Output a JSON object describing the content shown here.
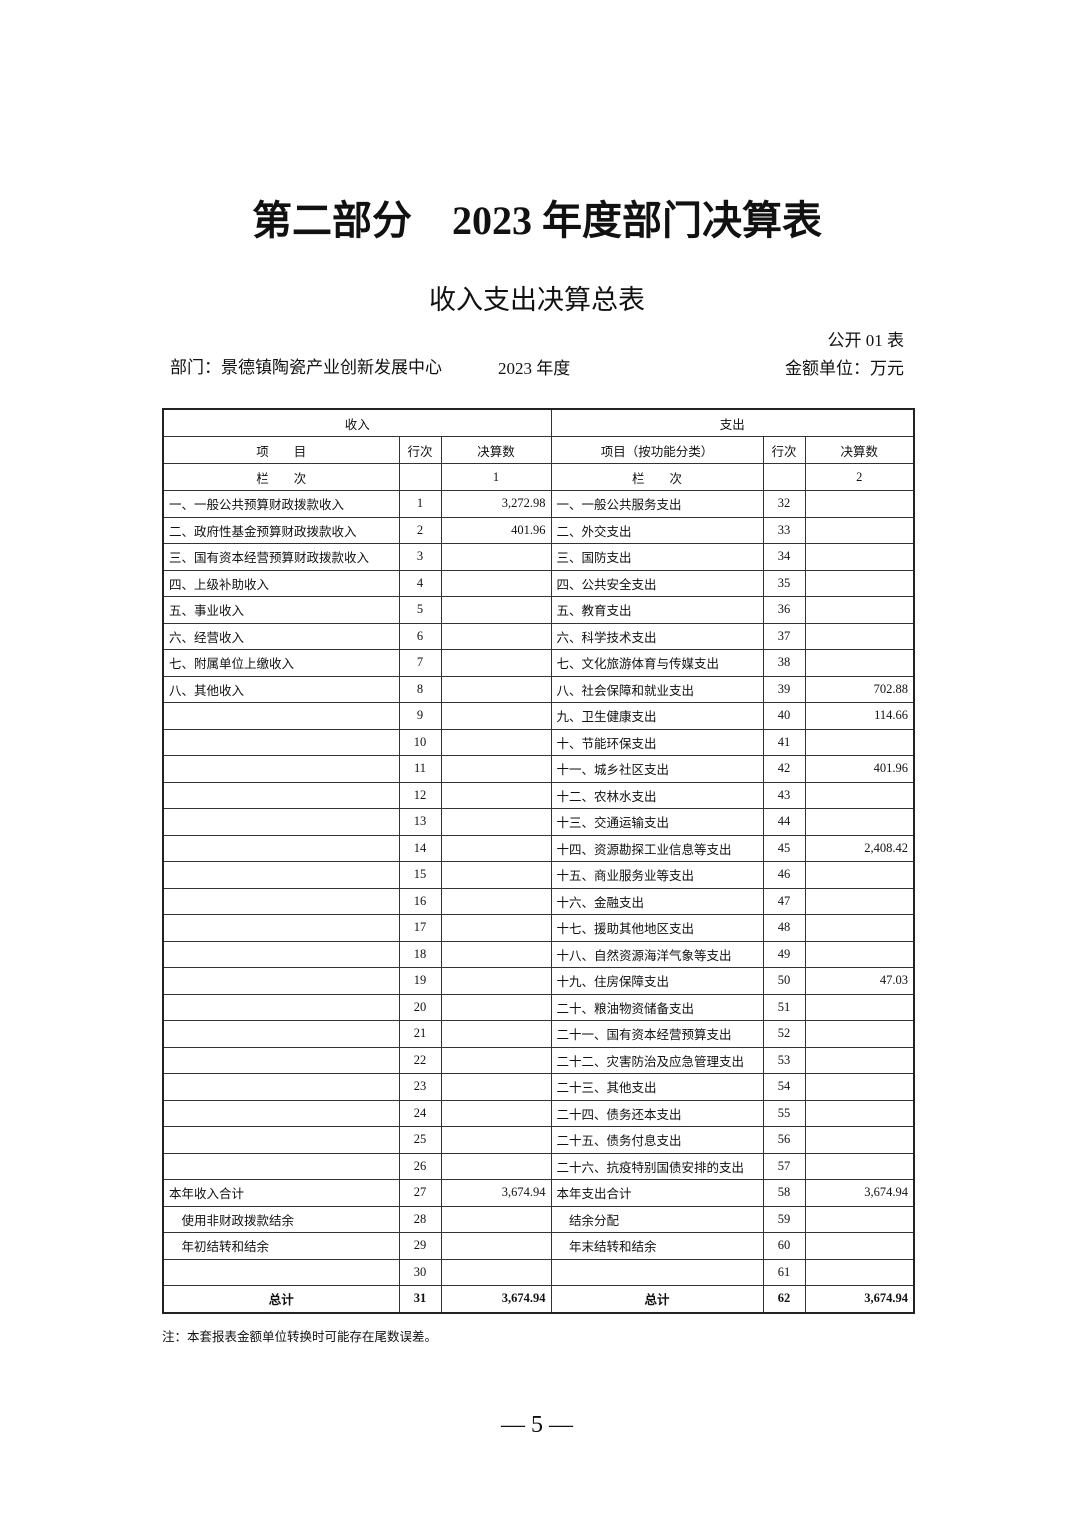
{
  "header": {
    "title": "第二部分　2023 年度部门决算表",
    "subtitle": "收入支出决算总表",
    "table_code": "公开 01 表",
    "department": "部门：景德镇陶瓷产业创新发展中心",
    "year": "2023 年度",
    "unit": "金额单位：万元"
  },
  "table": {
    "group_headers": [
      "收入",
      "支出"
    ],
    "column_headers": [
      "项　　目",
      "行次",
      "决算数",
      "项目（按功能分类）",
      "行次",
      "决算数"
    ],
    "column_numbers": [
      "栏　　次",
      null,
      "1",
      "栏　　次",
      null,
      "2"
    ],
    "rows": [
      [
        "一、一般公共预算财政拨款收入",
        1,
        "3,272.98",
        "一、一般公共服务支出",
        32,
        null
      ],
      [
        "二、政府性基金预算财政拨款收入",
        2,
        "401.96",
        "二、外交支出",
        33,
        null
      ],
      [
        "三、国有资本经营预算财政拨款收入",
        3,
        null,
        "三、国防支出",
        34,
        null
      ],
      [
        "四、上级补助收入",
        4,
        null,
        "四、公共安全支出",
        35,
        null
      ],
      [
        "五、事业收入",
        5,
        null,
        "五、教育支出",
        36,
        null
      ],
      [
        "六、经营收入",
        6,
        null,
        "六、科学技术支出",
        37,
        null
      ],
      [
        "七、附属单位上缴收入",
        7,
        null,
        "七、文化旅游体育与传媒支出",
        38,
        null
      ],
      [
        "八、其他收入",
        8,
        null,
        "八、社会保障和就业支出",
        39,
        "702.88"
      ],
      [
        null,
        9,
        null,
        "九、卫生健康支出",
        40,
        "114.66"
      ],
      [
        null,
        10,
        null,
        "十、节能环保支出",
        41,
        null
      ],
      [
        null,
        11,
        null,
        "十一、城乡社区支出",
        42,
        "401.96"
      ],
      [
        null,
        12,
        null,
        "十二、农林水支出",
        43,
        null
      ],
      [
        null,
        13,
        null,
        "十三、交通运输支出",
        44,
        null
      ],
      [
        null,
        14,
        null,
        "十四、资源勘探工业信息等支出",
        45,
        "2,408.42"
      ],
      [
        null,
        15,
        null,
        "十五、商业服务业等支出",
        46,
        null
      ],
      [
        null,
        16,
        null,
        "十六、金融支出",
        47,
        null
      ],
      [
        null,
        17,
        null,
        "十七、援助其他地区支出",
        48,
        null
      ],
      [
        null,
        18,
        null,
        "十八、自然资源海洋气象等支出",
        49,
        null
      ],
      [
        null,
        19,
        null,
        "十九、住房保障支出",
        50,
        "47.03"
      ],
      [
        null,
        20,
        null,
        "二十、粮油物资储备支出",
        51,
        null
      ],
      [
        null,
        21,
        null,
        "二十一、国有资本经营预算支出",
        52,
        null
      ],
      [
        null,
        22,
        null,
        "二十二、灾害防治及应急管理支出",
        53,
        null
      ],
      [
        null,
        23,
        null,
        "二十三、其他支出",
        54,
        null
      ],
      [
        null,
        24,
        null,
        "二十四、债务还本支出",
        55,
        null
      ],
      [
        null,
        25,
        null,
        "二十五、债务付息支出",
        56,
        null
      ],
      [
        null,
        26,
        null,
        "二十六、抗疫特别国债安排的支出",
        57,
        null
      ],
      [
        "本年收入合计",
        27,
        "3,674.94",
        "本年支出合计",
        58,
        "3,674.94"
      ],
      [
        "　使用非财政拨款结余",
        28,
        null,
        "　结余分配",
        59,
        null
      ],
      [
        "　年初结转和结余",
        29,
        null,
        "　年末结转和结余",
        60,
        null
      ],
      [
        null,
        30,
        null,
        null,
        61,
        null
      ],
      [
        "总计",
        31,
        "3,674.94",
        "总计",
        62,
        "3,674.94"
      ]
    ]
  },
  "footer": {
    "note": "注：本套报表金额单位转换时可能存在尾数误差。",
    "page_number": "— 5 —"
  }
}
